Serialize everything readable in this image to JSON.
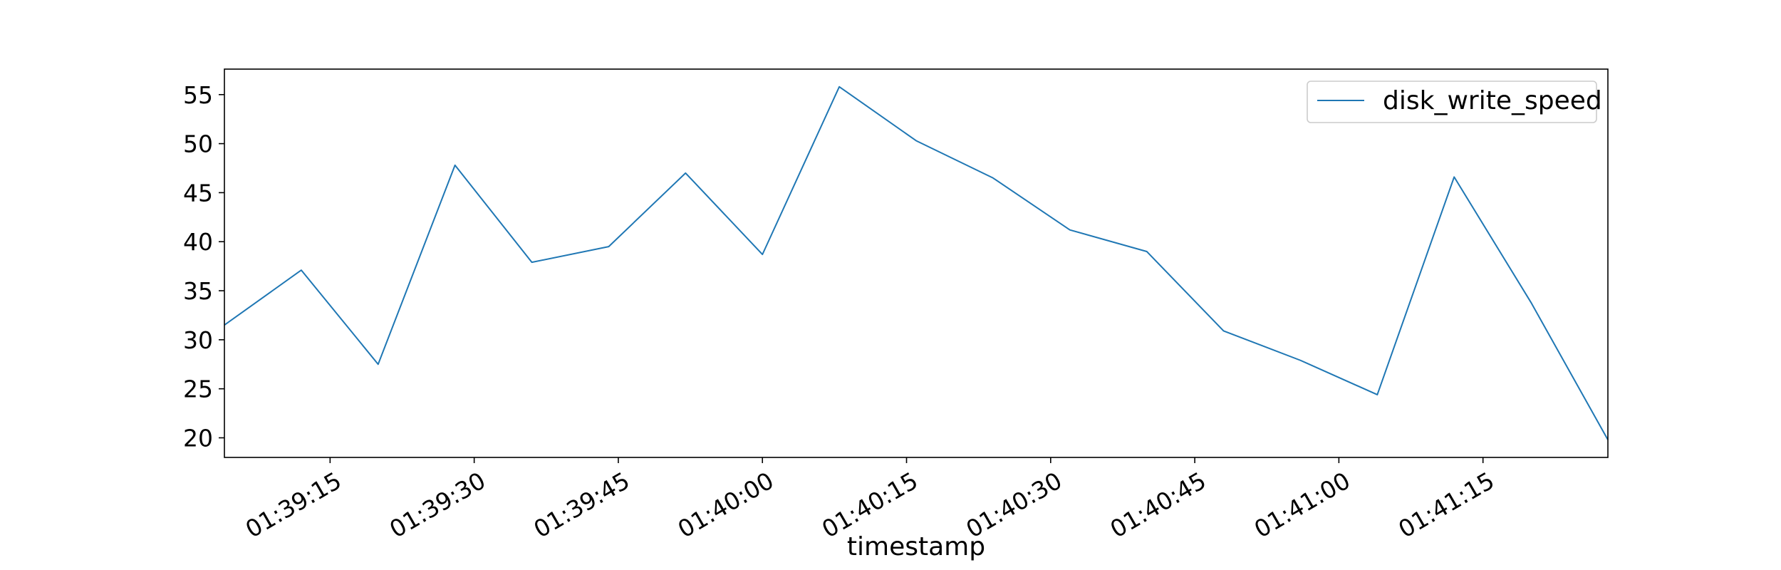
{
  "chart_data": {
    "type": "line",
    "xlabel": "timestamp",
    "ylabel": "",
    "x": [
      "01:39:04",
      "01:39:12",
      "01:39:20",
      "01:39:28",
      "01:39:36",
      "01:39:44",
      "01:39:52",
      "01:40:00",
      "01:40:08",
      "01:40:16",
      "01:40:24",
      "01:40:32",
      "01:40:40",
      "01:40:48",
      "01:40:56",
      "01:41:04",
      "01:41:12",
      "01:41:20",
      "01:41:28"
    ],
    "xlim": [
      "01:39:04",
      "01:41:28"
    ],
    "x_ticks": [
      "01:39:15",
      "01:39:30",
      "01:39:45",
      "01:40:00",
      "01:40:15",
      "01:40:30",
      "01:40:45",
      "01:41:00",
      "01:41:15"
    ],
    "series": [
      {
        "name": "disk_write_speed",
        "color": "#1f77b4",
        "values": [
          31.5,
          37.1,
          27.5,
          47.8,
          37.9,
          39.5,
          47.0,
          38.7,
          55.8,
          50.3,
          46.5,
          41.2,
          39.0,
          30.9,
          27.9,
          24.4,
          46.6,
          33.8,
          19.8
        ]
      }
    ],
    "ylim": [
      18.0,
      57.6
    ],
    "y_ticks": [
      20,
      25,
      30,
      35,
      40,
      45,
      50,
      55
    ],
    "legend": "top-right",
    "grid": false
  }
}
